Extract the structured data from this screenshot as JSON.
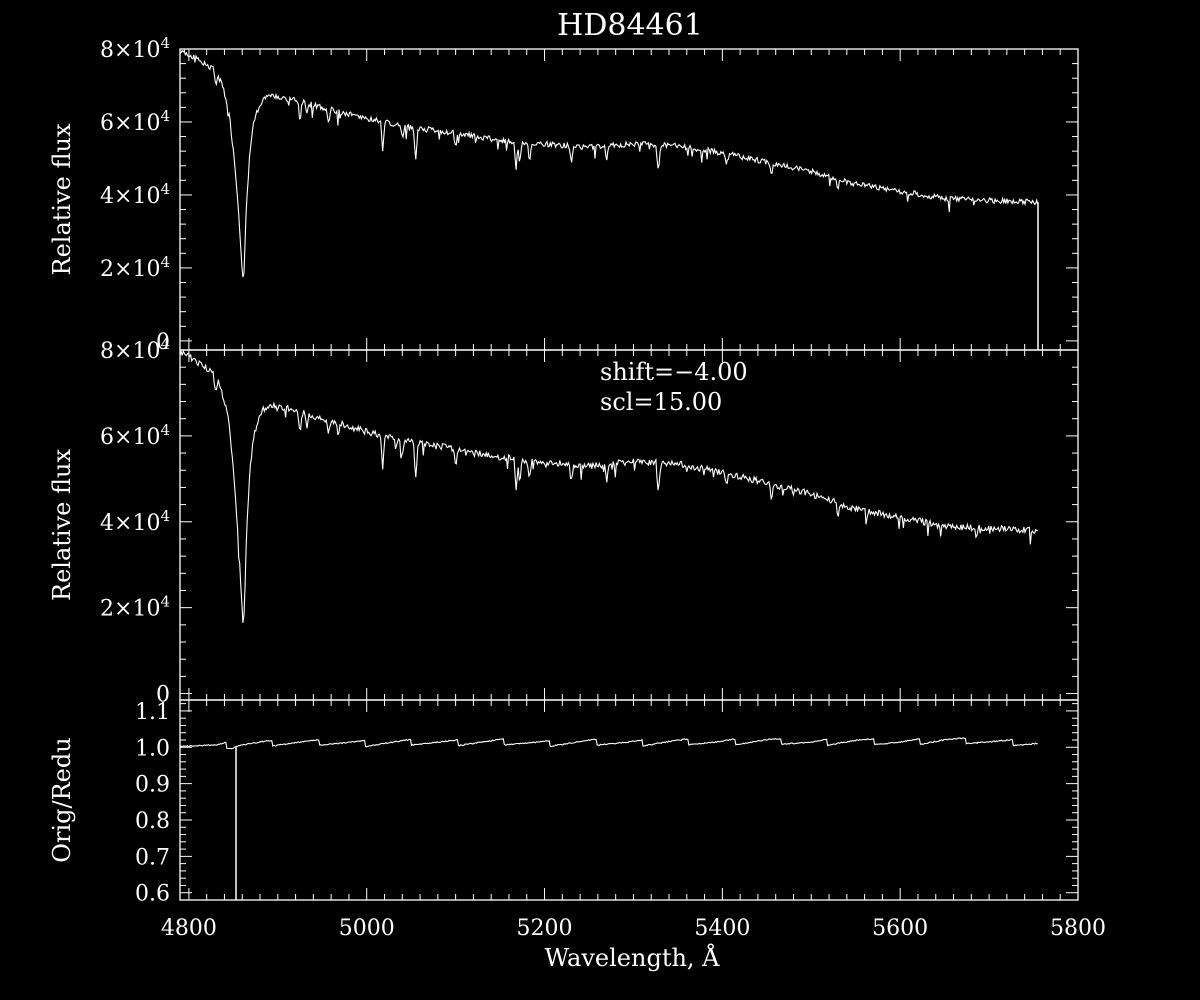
{
  "chart_data": [
    {
      "type": "line",
      "title": "HD84461",
      "ylabel": "Relative flux",
      "xlim": [
        4790,
        5800
      ],
      "ylim": [
        -2500,
        80000
      ],
      "yticks": [
        {
          "value": 0,
          "label": "0"
        },
        {
          "value": 20000,
          "mant": "2",
          "exp": "4"
        },
        {
          "value": 40000,
          "mant": "4",
          "exp": "4"
        },
        {
          "value": 60000,
          "mant": "6",
          "exp": "4"
        },
        {
          "value": 80000,
          "mant": "8",
          "exp": "4"
        }
      ],
      "series": [
        {
          "x": [
            4790,
            4800,
            4815,
            4830,
            4838,
            4845,
            4850,
            4855,
            4858,
            4860,
            4861,
            4862,
            4863,
            4865,
            4868,
            4872,
            4878,
            4885,
            4895,
            4905,
            4920,
            4950,
            5000,
            5050,
            5100,
            5150,
            5200,
            5250,
            5300,
            5350,
            5400,
            5450,
            5500,
            5550,
            5600,
            5650,
            5700,
            5755
          ],
          "y": [
            79500,
            78500,
            76500,
            74000,
            70000,
            63000,
            52000,
            38000,
            27000,
            19000,
            16500,
            19000,
            26000,
            38000,
            50000,
            59000,
            64000,
            66500,
            67000,
            66500,
            66000,
            64000,
            61000,
            58500,
            57000,
            55000,
            54000,
            53000,
            54000,
            53500,
            51500,
            49000,
            46500,
            43000,
            41000,
            39000,
            38500,
            38000
          ]
        }
      ],
      "dropline": {
        "x": 5755,
        "y_from": 38000,
        "y_to": -2500
      },
      "absorption_lines": [
        {
          "x": 4830,
          "depth": 4000
        },
        {
          "x": 4925,
          "depth": 6000
        },
        {
          "x": 4933,
          "depth": 3000
        },
        {
          "x": 4957,
          "depth": 4000
        },
        {
          "x": 5018,
          "depth": 8000
        },
        {
          "x": 5040,
          "depth": 3500
        },
        {
          "x": 5055,
          "depth": 9000
        },
        {
          "x": 5100,
          "depth": 4000
        },
        {
          "x": 5168,
          "depth": 8000
        },
        {
          "x": 5172,
          "depth": 6000
        },
        {
          "x": 5183,
          "depth": 5000
        },
        {
          "x": 5230,
          "depth": 4500
        },
        {
          "x": 5270,
          "depth": 3500
        },
        {
          "x": 5328,
          "depth": 8000
        },
        {
          "x": 5405,
          "depth": 3000
        },
        {
          "x": 5455,
          "depth": 3500
        },
        {
          "x": 5530,
          "depth": 3000
        }
      ]
    },
    {
      "type": "line",
      "ylabel": "Relative flux",
      "xlim": [
        4790,
        5800
      ],
      "ylim": [
        -1500,
        80000
      ],
      "annotations": [
        "shift=−4.00",
        "scl=15.00"
      ],
      "yticks": [
        {
          "value": 0,
          "label": "0"
        },
        {
          "value": 20000,
          "mant": "2",
          "exp": "4"
        },
        {
          "value": 40000,
          "mant": "4",
          "exp": "4"
        },
        {
          "value": 60000,
          "mant": "6",
          "exp": "4"
        },
        {
          "value": 80000,
          "mant": "8",
          "exp": "4"
        }
      ],
      "series": [
        {
          "x": [
            4790,
            4800,
            4815,
            4830,
            4838,
            4845,
            4850,
            4855,
            4858,
            4860,
            4861,
            4862,
            4863,
            4865,
            4868,
            4872,
            4878,
            4885,
            4895,
            4905,
            4920,
            4950,
            5000,
            5050,
            5100,
            5150,
            5200,
            5250,
            5300,
            5350,
            5400,
            5450,
            5500,
            5550,
            5600,
            5650,
            5700,
            5755
          ],
          "y": [
            79500,
            78500,
            76500,
            74000,
            70000,
            63000,
            52000,
            38000,
            27000,
            19000,
            16500,
            19000,
            26000,
            38000,
            50000,
            59000,
            64000,
            66500,
            67000,
            66500,
            66000,
            64000,
            61000,
            58500,
            57000,
            55000,
            54000,
            53000,
            54000,
            53500,
            51500,
            49000,
            46500,
            43000,
            41000,
            39000,
            38500,
            38000
          ]
        }
      ],
      "absorption_lines": [
        {
          "x": 4830,
          "depth": 4000
        },
        {
          "x": 4925,
          "depth": 6000
        },
        {
          "x": 4933,
          "depth": 3000
        },
        {
          "x": 4957,
          "depth": 4000
        },
        {
          "x": 5018,
          "depth": 8000
        },
        {
          "x": 5040,
          "depth": 3500
        },
        {
          "x": 5055,
          "depth": 9000
        },
        {
          "x": 5100,
          "depth": 4000
        },
        {
          "x": 5168,
          "depth": 8000
        },
        {
          "x": 5172,
          "depth": 6000
        },
        {
          "x": 5183,
          "depth": 5000
        },
        {
          "x": 5230,
          "depth": 4500
        },
        {
          "x": 5270,
          "depth": 3500
        },
        {
          "x": 5328,
          "depth": 8000
        },
        {
          "x": 5405,
          "depth": 3000
        },
        {
          "x": 5455,
          "depth": 3500
        },
        {
          "x": 5530,
          "depth": 3000
        }
      ]
    },
    {
      "type": "line",
      "ylabel": "Orig/Redu",
      "xlabel": "Wavelength, Å",
      "xlim": [
        4790,
        5800
      ],
      "ylim": [
        0.58,
        1.13
      ],
      "xticks": [
        4800,
        5000,
        5200,
        5400,
        5600,
        5800
      ],
      "yticks": [
        0.6,
        0.7,
        0.8,
        0.9,
        1.0,
        1.1
      ],
      "series": [
        {
          "x": [
            4790,
            4800,
            4810,
            4820,
            4830,
            4840,
            4850,
            4855,
            4870,
            4900,
            4950,
            5000,
            5050,
            5100,
            5150,
            5200,
            5250,
            5300,
            5350,
            5400,
            5450,
            5500,
            5550,
            5600,
            5650,
            5700,
            5755
          ],
          "y": [
            1.01,
            1.008,
            1.006,
            1.004,
            1.002,
            1.005,
            1.002,
            1.008,
            1.01,
            1.012,
            1.013,
            1.01,
            1.014,
            1.012,
            1.015,
            1.01,
            1.014,
            1.011,
            1.015,
            1.013,
            1.018,
            1.012,
            1.017,
            1.013,
            1.02,
            1.015,
            1.01
          ]
        }
      ],
      "dropline": {
        "x": 4853,
        "y_from": 1.0,
        "y_to": 0.58
      },
      "sawtooth_period": 52,
      "sawtooth_amp": 0.008
    }
  ]
}
